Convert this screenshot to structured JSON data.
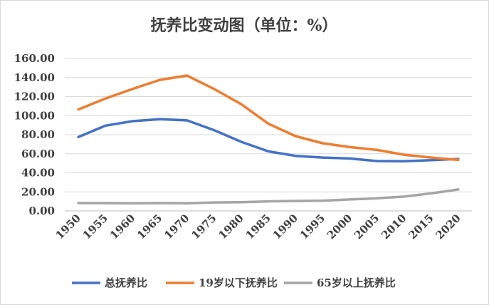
{
  "chart_data": {
    "type": "line",
    "title": "抚养比变动图（单位：%）",
    "xlabel": "",
    "ylabel": "",
    "x": [
      "1950",
      "1955",
      "1960",
      "1965",
      "1970",
      "1975",
      "1980",
      "1985",
      "1990",
      "1995",
      "2000",
      "2005",
      "2010",
      "2015",
      "2020"
    ],
    "y_ticks": [
      "0.00",
      "20.00",
      "40.00",
      "60.00",
      "80.00",
      "100.00",
      "120.00",
      "140.00",
      "160.00"
    ],
    "ylim": [
      0,
      160
    ],
    "grid": true,
    "legend_position": "bottom",
    "series": [
      {
        "name": "总抚养比",
        "color": "#4472C4",
        "values": [
          77.5,
          89.5,
          94.2,
          96.3,
          95.0,
          84.8,
          72.5,
          62.5,
          57.8,
          56.0,
          55.0,
          52.3,
          52.1,
          53.3,
          54.5
        ]
      },
      {
        "name": "19岁以下抚养比",
        "color": "#ED7D31",
        "values": [
          106.5,
          118.0,
          128.0,
          137.5,
          142.0,
          128.0,
          112.0,
          91.5,
          78.5,
          71.0,
          67.0,
          64.0,
          59.0,
          56.0,
          53.5
        ]
      },
      {
        "name": "65岁以上抚养比",
        "color": "#A5A5A5",
        "values": [
          8.3,
          8.2,
          8.1,
          8.2,
          8.1,
          8.9,
          9.2,
          10.0,
          10.5,
          10.8,
          12.0,
          13.2,
          15.0,
          18.5,
          22.5
        ]
      }
    ]
  }
}
